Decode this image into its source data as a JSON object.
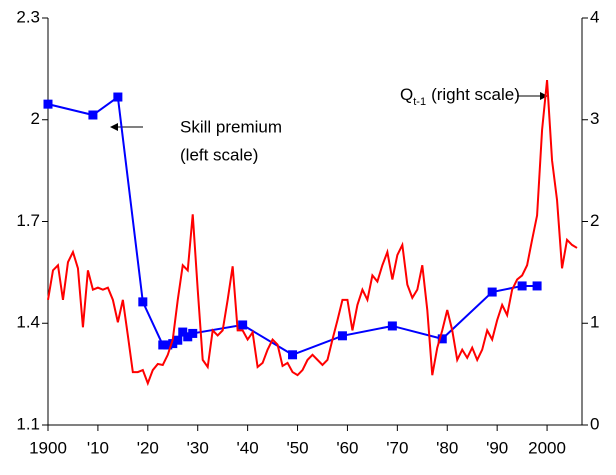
{
  "chart_data": {
    "type": "line",
    "xlim": [
      1900,
      2007
    ],
    "xticks": [
      1900,
      {
        "value": 1910,
        "label": "'10"
      },
      {
        "value": 1920,
        "label": "'20"
      },
      {
        "value": 1930,
        "label": "'30"
      },
      {
        "value": 1940,
        "label": "'40"
      },
      {
        "value": 1950,
        "label": "'50"
      },
      {
        "value": 1960,
        "label": "'60"
      },
      {
        "value": 1970,
        "label": "'70"
      },
      {
        "value": 1980,
        "label": "'80"
      },
      {
        "value": 1990,
        "label": "'90"
      },
      2000
    ],
    "ylim": [
      1.1,
      2.3
    ],
    "yticks": [
      1.1,
      1.4,
      1.7,
      2,
      2.3
    ],
    "y2lim": [
      0,
      4
    ],
    "y2ticks": [
      0,
      1,
      2,
      3,
      4
    ],
    "series": [
      {
        "name": "Skill premium",
        "note": "(left scale)",
        "color": "#0000ff",
        "marker": "square",
        "x": [
          1900,
          1909,
          1914,
          1919,
          1923,
          1924,
          1925,
          1926,
          1927,
          1928,
          1929,
          1939,
          1949,
          1959,
          1969,
          1979,
          1989,
          1995,
          1998
        ],
        "values": [
          2.046,
          2.014,
          2.067,
          1.463,
          1.336,
          1.336,
          1.34,
          1.35,
          1.374,
          1.36,
          1.37,
          1.395,
          1.307,
          1.363,
          1.392,
          1.354,
          1.492,
          1.51,
          1.51
        ]
      },
      {
        "name": "Q",
        "subscript": "t-1",
        "note": "(right scale)",
        "color": "#ff0000",
        "axis": "y2",
        "x": [
          1900,
          1901,
          1902,
          1903,
          1904,
          1905,
          1906,
          1907,
          1908,
          1909,
          1910,
          1911,
          1912,
          1913,
          1914,
          1915,
          1916,
          1917,
          1918,
          1919,
          1920,
          1921,
          1922,
          1923,
          1924,
          1925,
          1926,
          1927,
          1928,
          1929,
          1930,
          1931,
          1932,
          1933,
          1934,
          1935,
          1936,
          1937,
          1938,
          1939,
          1940,
          1941,
          1942,
          1943,
          1944,
          1945,
          1946,
          1947,
          1948,
          1949,
          1950,
          1951,
          1952,
          1953,
          1954,
          1955,
          1956,
          1957,
          1958,
          1959,
          1960,
          1961,
          1962,
          1963,
          1964,
          1965,
          1966,
          1967,
          1968,
          1969,
          1970,
          1971,
          1972,
          1973,
          1974,
          1975,
          1976,
          1977,
          1978,
          1979,
          1980,
          1981,
          1982,
          1983,
          1984,
          1985,
          1986,
          1987,
          1988,
          1989,
          1990,
          1991,
          1992,
          1993,
          1994,
          1995,
          1996,
          1997,
          1998,
          1999,
          2000,
          2001,
          2002,
          2003,
          2004,
          2005,
          2006
        ],
        "values": [
          1.23,
          1.52,
          1.57,
          1.23,
          1.6,
          1.7,
          1.54,
          0.96,
          1.52,
          1.33,
          1.35,
          1.33,
          1.35,
          1.23,
          1.01,
          1.23,
          0.88,
          0.52,
          0.52,
          0.54,
          0.41,
          0.54,
          0.6,
          0.59,
          0.69,
          0.84,
          1.23,
          1.57,
          1.52,
          2.07,
          1.33,
          0.64,
          0.57,
          0.93,
          0.88,
          0.93,
          1.23,
          1.56,
          0.93,
          0.93,
          0.84,
          0.91,
          0.57,
          0.61,
          0.74,
          0.84,
          0.79,
          0.58,
          0.61,
          0.52,
          0.49,
          0.54,
          0.64,
          0.69,
          0.64,
          0.59,
          0.64,
          0.84,
          1.03,
          1.23,
          1.23,
          0.93,
          1.18,
          1.33,
          1.23,
          1.47,
          1.41,
          1.57,
          1.7,
          1.43,
          1.67,
          1.77,
          1.38,
          1.25,
          1.33,
          1.57,
          1.13,
          0.49,
          0.76,
          0.93,
          1.13,
          0.93,
          0.64,
          0.74,
          0.66,
          0.76,
          0.64,
          0.74,
          0.93,
          0.84,
          1.03,
          1.18,
          1.08,
          1.33,
          1.43,
          1.47,
          1.57,
          1.82,
          2.06,
          2.9,
          3.39,
          2.6,
          2.21,
          1.54,
          1.82,
          1.77,
          1.74
        ]
      }
    ]
  }
}
